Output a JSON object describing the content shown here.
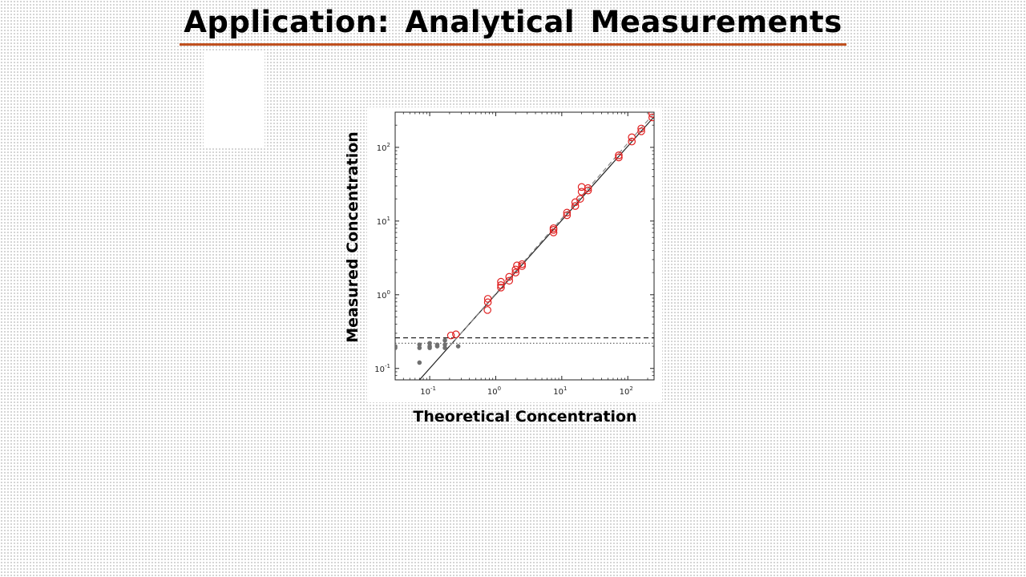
{
  "slide": {
    "title": "Application:  Analytical Measurements"
  },
  "colors": {
    "accent_rule": "#c0501f",
    "quantified_points": "#e02020",
    "below_limit_points": "#707070"
  },
  "chart_data": {
    "type": "scatter",
    "title": "",
    "xlabel": "Theoretical Concentration",
    "ylabel": "Measured Concentration",
    "xscale": "log",
    "yscale": "log",
    "xlim": [
      0.03,
      250
    ],
    "ylim": [
      0.07,
      300
    ],
    "x_ticks": [
      {
        "base": "10",
        "exp": "-1",
        "value": 0.1
      },
      {
        "base": "10",
        "exp": "0",
        "value": 1
      },
      {
        "base": "10",
        "exp": "1",
        "value": 10
      },
      {
        "base": "10",
        "exp": "2",
        "value": 100
      }
    ],
    "y_ticks": [
      {
        "base": "10",
        "exp": "-1",
        "value": 0.1
      },
      {
        "base": "10",
        "exp": "0",
        "value": 1
      },
      {
        "base": "10",
        "exp": "1",
        "value": 10
      },
      {
        "base": "10",
        "exp": "2",
        "value": 100
      }
    ],
    "grid": false,
    "legend": false,
    "series": [
      {
        "marker": "open-circle",
        "color": "#e02020",
        "points": [
          [
            0.21,
            0.28
          ],
          [
            0.25,
            0.29
          ],
          [
            0.75,
            0.62
          ],
          [
            0.76,
            0.79
          ],
          [
            0.76,
            0.88
          ],
          [
            1.2,
            1.25
          ],
          [
            1.2,
            1.35
          ],
          [
            1.2,
            1.5
          ],
          [
            1.6,
            1.55
          ],
          [
            1.6,
            1.75
          ],
          [
            2.0,
            2.0
          ],
          [
            2.0,
            2.2
          ],
          [
            2.1,
            2.5
          ],
          [
            2.5,
            2.45
          ],
          [
            2.5,
            2.6
          ],
          [
            7.5,
            7.0
          ],
          [
            7.5,
            7.6
          ],
          [
            7.5,
            8.0
          ],
          [
            12,
            12
          ],
          [
            12,
            13
          ],
          [
            16,
            16
          ],
          [
            16,
            18
          ],
          [
            19,
            20
          ],
          [
            20,
            25
          ],
          [
            20,
            29
          ],
          [
            25,
            26
          ],
          [
            25,
            28
          ],
          [
            73,
            73
          ],
          [
            73,
            78
          ],
          [
            115,
            120
          ],
          [
            115,
            137
          ],
          [
            160,
            165
          ],
          [
            160,
            180
          ],
          [
            235,
            255
          ],
          [
            235,
            285
          ]
        ]
      },
      {
        "marker": "filled-circle",
        "color": "#707070",
        "points": [
          [
            0.03,
            0.19
          ],
          [
            0.03,
            0.2
          ],
          [
            0.07,
            0.12
          ],
          [
            0.07,
            0.19
          ],
          [
            0.07,
            0.21
          ],
          [
            0.1,
            0.19
          ],
          [
            0.1,
            0.2
          ],
          [
            0.1,
            0.22
          ],
          [
            0.13,
            0.2
          ],
          [
            0.13,
            0.21
          ],
          [
            0.17,
            0.19
          ],
          [
            0.17,
            0.21
          ],
          [
            0.17,
            0.24
          ],
          [
            0.27,
            0.2
          ]
        ]
      }
    ],
    "reference_lines": [
      {
        "kind": "fit",
        "style": "solid",
        "color": "#222222",
        "x": [
          0.07,
          250
        ],
        "y": [
          0.07,
          260
        ]
      },
      {
        "kind": "identity",
        "style": "dashed",
        "color": "#888888",
        "x": [
          0.2,
          250
        ],
        "y": [
          0.2,
          290
        ]
      },
      {
        "kind": "horizontal",
        "style": "dashed",
        "color": "#111111",
        "y": 0.26
      },
      {
        "kind": "horizontal",
        "style": "dotted",
        "color": "#555555",
        "y": 0.22
      }
    ]
  }
}
